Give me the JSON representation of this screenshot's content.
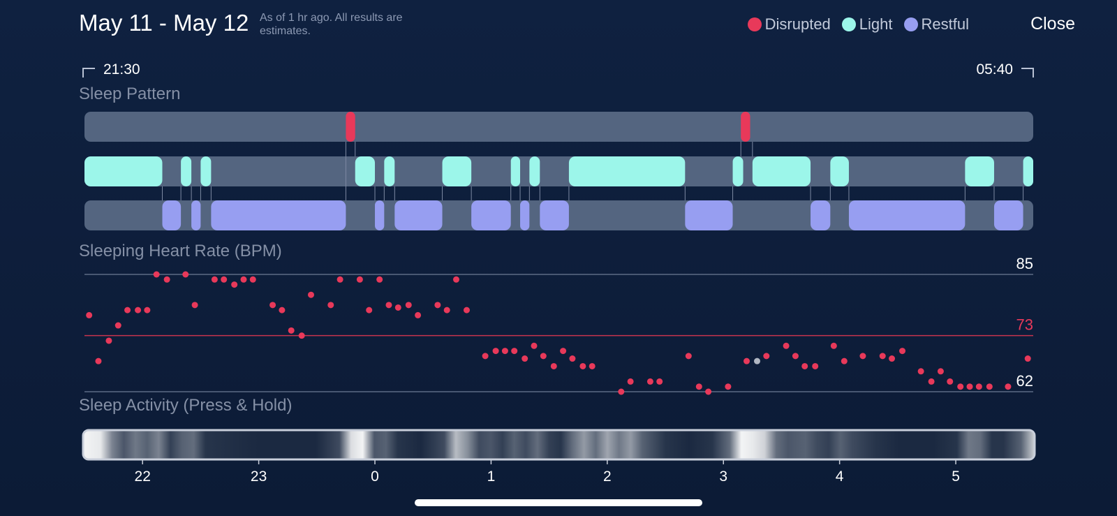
{
  "header": {
    "title": "May 11 - May 12",
    "subtitle": "As of 1 hr ago. All results are estimates.",
    "close_label": "Close"
  },
  "legend": [
    {
      "label": "Disrupted",
      "color": "#e8395a"
    },
    {
      "label": "Light",
      "color": "#9cf6ea"
    },
    {
      "label": "Restful",
      "color": "#979ef1"
    }
  ],
  "time_range": {
    "start": "21:30",
    "end": "05:40"
  },
  "sections": {
    "sleep_pattern": "Sleep Pattern",
    "heart_rate": "Sleeping Heart Rate (BPM)",
    "activity": "Sleep Activity (Press & Hold)"
  },
  "chart_data": [
    {
      "type": "timeline",
      "name": "sleep_pattern",
      "x_unit": "hours after 21:30",
      "x_range": [
        0,
        8.1667
      ],
      "rows": [
        "Disrupted",
        "Light",
        "Restful"
      ],
      "segments": [
        {
          "stage": "Disrupted",
          "start": 2.25,
          "end": 2.33
        },
        {
          "stage": "Disrupted",
          "start": 5.65,
          "end": 5.73
        },
        {
          "stage": "Light",
          "start": 0.0,
          "end": 0.67
        },
        {
          "stage": "Light",
          "start": 0.83,
          "end": 0.92
        },
        {
          "stage": "Light",
          "start": 1.0,
          "end": 1.09
        },
        {
          "stage": "Light",
          "start": 2.33,
          "end": 2.5
        },
        {
          "stage": "Light",
          "start": 2.58,
          "end": 2.67
        },
        {
          "stage": "Light",
          "start": 3.08,
          "end": 3.33
        },
        {
          "stage": "Light",
          "start": 3.67,
          "end": 3.75
        },
        {
          "stage": "Light",
          "start": 3.83,
          "end": 3.92
        },
        {
          "stage": "Light",
          "start": 4.17,
          "end": 5.17
        },
        {
          "stage": "Light",
          "start": 5.58,
          "end": 5.67
        },
        {
          "stage": "Light",
          "start": 5.75,
          "end": 6.25
        },
        {
          "stage": "Light",
          "start": 6.42,
          "end": 6.58
        },
        {
          "stage": "Light",
          "start": 7.58,
          "end": 7.83
        },
        {
          "stage": "Light",
          "start": 8.08,
          "end": 8.1667
        },
        {
          "stage": "Restful",
          "start": 0.67,
          "end": 0.83
        },
        {
          "stage": "Restful",
          "start": 0.92,
          "end": 1.0
        },
        {
          "stage": "Restful",
          "start": 1.09,
          "end": 2.25
        },
        {
          "stage": "Restful",
          "start": 2.5,
          "end": 2.58
        },
        {
          "stage": "Restful",
          "start": 2.67,
          "end": 3.08
        },
        {
          "stage": "Restful",
          "start": 3.33,
          "end": 3.67
        },
        {
          "stage": "Restful",
          "start": 3.75,
          "end": 3.83
        },
        {
          "stage": "Restful",
          "start": 3.92,
          "end": 4.17
        },
        {
          "stage": "Restful",
          "start": 5.17,
          "end": 5.58
        },
        {
          "stage": "Restful",
          "start": 6.25,
          "end": 6.42
        },
        {
          "stage": "Restful",
          "start": 6.58,
          "end": 7.58
        },
        {
          "stage": "Restful",
          "start": 7.83,
          "end": 8.08
        }
      ]
    },
    {
      "type": "scatter",
      "name": "heart_rate",
      "ylabel": "Sleeping Heart Rate (BPM)",
      "ylim": [
        62,
        85
      ],
      "reference_lines": [
        {
          "value": 85,
          "label": "85",
          "color": "#ffffff"
        },
        {
          "value": 73,
          "label": "73",
          "color": "#e8395a"
        },
        {
          "value": 62,
          "label": "62",
          "color": "#ffffff"
        }
      ],
      "x_unit": "hours after 21:30",
      "points": [
        [
          0.04,
          77
        ],
        [
          0.12,
          68
        ],
        [
          0.21,
          72
        ],
        [
          0.29,
          75
        ],
        [
          0.37,
          78
        ],
        [
          0.46,
          78
        ],
        [
          0.54,
          78
        ],
        [
          0.62,
          85
        ],
        [
          0.71,
          84
        ],
        [
          0.87,
          85
        ],
        [
          0.95,
          79
        ],
        [
          1.12,
          84
        ],
        [
          1.2,
          84
        ],
        [
          1.29,
          83
        ],
        [
          1.37,
          84
        ],
        [
          1.45,
          84
        ],
        [
          1.62,
          79
        ],
        [
          1.7,
          78
        ],
        [
          1.78,
          74
        ],
        [
          1.87,
          73
        ],
        [
          1.95,
          81
        ],
        [
          2.12,
          79
        ],
        [
          2.2,
          84
        ],
        [
          2.37,
          84
        ],
        [
          2.45,
          78
        ],
        [
          2.54,
          84
        ],
        [
          2.62,
          79
        ],
        [
          2.7,
          78.5
        ],
        [
          2.79,
          79
        ],
        [
          2.87,
          77
        ],
        [
          3.04,
          79
        ],
        [
          3.12,
          78
        ],
        [
          3.2,
          84
        ],
        [
          3.29,
          78
        ],
        [
          3.45,
          69
        ],
        [
          3.54,
          70
        ],
        [
          3.62,
          70
        ],
        [
          3.7,
          70
        ],
        [
          3.79,
          68.5
        ],
        [
          3.87,
          71
        ],
        [
          3.95,
          69
        ],
        [
          4.04,
          67
        ],
        [
          4.12,
          70
        ],
        [
          4.2,
          68.5
        ],
        [
          4.29,
          67
        ],
        [
          4.37,
          67
        ],
        [
          4.62,
          62
        ],
        [
          4.7,
          64
        ],
        [
          4.87,
          64
        ],
        [
          4.95,
          64
        ],
        [
          5.2,
          69
        ],
        [
          5.29,
          63
        ],
        [
          5.37,
          62
        ],
        [
          5.54,
          63
        ],
        [
          5.7,
          68
        ],
        [
          5.79,
          68,
          "gray"
        ],
        [
          5.87,
          69
        ],
        [
          6.04,
          71
        ],
        [
          6.12,
          69
        ],
        [
          6.2,
          67
        ],
        [
          6.29,
          67
        ],
        [
          6.45,
          71
        ],
        [
          6.54,
          68
        ],
        [
          6.7,
          69
        ],
        [
          6.87,
          69
        ],
        [
          6.95,
          68.5
        ],
        [
          7.04,
          70
        ],
        [
          7.2,
          66
        ],
        [
          7.29,
          64
        ],
        [
          7.37,
          66
        ],
        [
          7.45,
          64
        ],
        [
          7.54,
          63
        ],
        [
          7.62,
          63
        ],
        [
          7.7,
          63
        ],
        [
          7.79,
          63
        ],
        [
          7.95,
          63
        ],
        [
          8.12,
          68.5
        ]
      ]
    },
    {
      "type": "activity-strip",
      "name": "sleep_activity",
      "x_unit": "hours after 21:30",
      "x_ticks": [
        "22",
        "23",
        "0",
        "1",
        "2",
        "3",
        "4",
        "5"
      ],
      "x_tick_values": [
        0.5,
        1.5,
        2.5,
        3.5,
        4.5,
        5.5,
        6.5,
        7.5
      ],
      "intensity": [
        [
          0.0,
          0.95
        ],
        [
          0.15,
          0.9
        ],
        [
          0.25,
          0.45
        ],
        [
          0.35,
          0.25
        ],
        [
          0.45,
          0.4
        ],
        [
          0.55,
          0.3
        ],
        [
          0.65,
          0.45
        ],
        [
          0.75,
          0.15
        ],
        [
          0.85,
          0.3
        ],
        [
          0.95,
          0.35
        ],
        [
          1.05,
          0.1
        ],
        [
          1.5,
          0.05
        ],
        [
          2.0,
          0.05
        ],
        [
          2.2,
          0.2
        ],
        [
          2.3,
          0.85
        ],
        [
          2.4,
          0.95
        ],
        [
          2.5,
          0.25
        ],
        [
          2.6,
          0.3
        ],
        [
          2.7,
          0.1
        ],
        [
          2.9,
          0.05
        ],
        [
          3.1,
          0.2
        ],
        [
          3.2,
          0.7
        ],
        [
          3.3,
          0.5
        ],
        [
          3.4,
          0.2
        ],
        [
          3.5,
          0.25
        ],
        [
          3.6,
          0.15
        ],
        [
          3.7,
          0.3
        ],
        [
          3.8,
          0.2
        ],
        [
          3.9,
          0.35
        ],
        [
          4.0,
          0.15
        ],
        [
          4.1,
          0.1
        ],
        [
          4.2,
          0.35
        ],
        [
          4.3,
          0.55
        ],
        [
          4.4,
          0.35
        ],
        [
          4.5,
          0.6
        ],
        [
          4.6,
          0.4
        ],
        [
          4.7,
          0.55
        ],
        [
          4.8,
          0.3
        ],
        [
          5.0,
          0.1
        ],
        [
          5.2,
          0.05
        ],
        [
          5.4,
          0.1
        ],
        [
          5.55,
          0.35
        ],
        [
          5.65,
          0.95
        ],
        [
          5.75,
          0.9
        ],
        [
          5.85,
          0.8
        ],
        [
          5.95,
          0.35
        ],
        [
          6.05,
          0.25
        ],
        [
          6.2,
          0.3
        ],
        [
          6.3,
          0.2
        ],
        [
          6.4,
          0.15
        ],
        [
          6.5,
          0.3
        ],
        [
          6.6,
          0.2
        ],
        [
          6.8,
          0.1
        ],
        [
          7.0,
          0.05
        ],
        [
          7.3,
          0.05
        ],
        [
          7.5,
          0.1
        ],
        [
          7.6,
          0.4
        ],
        [
          7.7,
          0.35
        ],
        [
          7.8,
          0.1
        ],
        [
          7.9,
          0.1
        ],
        [
          8.05,
          0.3
        ],
        [
          8.1667,
          0.8
        ]
      ]
    }
  ]
}
